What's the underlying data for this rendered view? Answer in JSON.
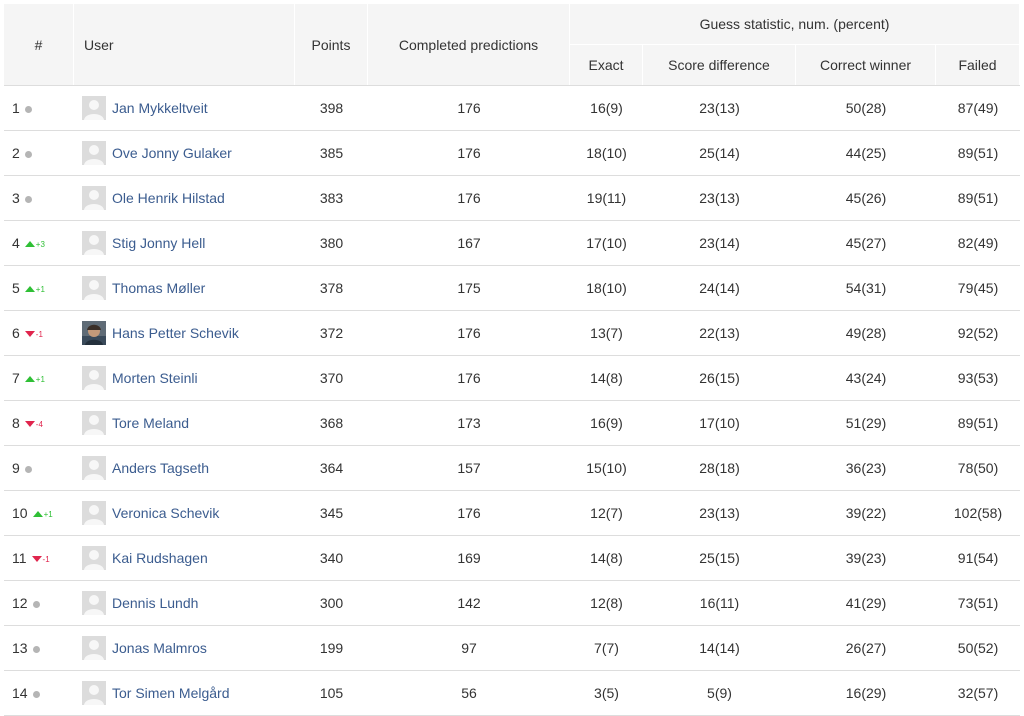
{
  "columns": {
    "rank": "#",
    "user": "User",
    "points": "Points",
    "completed": "Completed predictions",
    "guess_group": "Guess statistic, num. (percent)",
    "exact": "Exact",
    "score_diff": "Score difference",
    "correct_winner": "Correct winner",
    "failed": "Failed"
  },
  "colors": {
    "up": "#2fbf35",
    "down": "#e0254d",
    "same": "#b5b5b5",
    "link": "#3b5c8f"
  },
  "rows": [
    {
      "rank": "1",
      "trend": "same",
      "change": "",
      "name": "Jan Mykkeltveit",
      "avatar": "placeholder-avatar-icon",
      "points": "398",
      "completed": "176",
      "exact": "16(9)",
      "score_diff": "23(13)",
      "correct_winner": "50(28)",
      "failed": "87(49)"
    },
    {
      "rank": "2",
      "trend": "same",
      "change": "",
      "name": "Ove Jonny Gulaker",
      "avatar": "placeholder-avatar-icon",
      "points": "385",
      "completed": "176",
      "exact": "18(10)",
      "score_diff": "25(14)",
      "correct_winner": "44(25)",
      "failed": "89(51)"
    },
    {
      "rank": "3",
      "trend": "same",
      "change": "",
      "name": "Ole Henrik Hilstad",
      "avatar": "placeholder-avatar-icon",
      "points": "383",
      "completed": "176",
      "exact": "19(11)",
      "score_diff": "23(13)",
      "correct_winner": "45(26)",
      "failed": "89(51)"
    },
    {
      "rank": "4",
      "trend": "up",
      "change": "+3",
      "name": "Stig Jonny Hell",
      "avatar": "placeholder-avatar-icon",
      "points": "380",
      "completed": "167",
      "exact": "17(10)",
      "score_diff": "23(14)",
      "correct_winner": "45(27)",
      "failed": "82(49)"
    },
    {
      "rank": "5",
      "trend": "up",
      "change": "+1",
      "name": "Thomas Møller",
      "avatar": "placeholder-avatar-icon",
      "points": "378",
      "completed": "175",
      "exact": "18(10)",
      "score_diff": "24(14)",
      "correct_winner": "54(31)",
      "failed": "79(45)"
    },
    {
      "rank": "6",
      "trend": "down",
      "change": "-1",
      "name": "Hans Petter Schevik",
      "avatar": "photo-avatar-icon",
      "points": "372",
      "completed": "176",
      "exact": "13(7)",
      "score_diff": "22(13)",
      "correct_winner": "49(28)",
      "failed": "92(52)"
    },
    {
      "rank": "7",
      "trend": "up",
      "change": "+1",
      "name": "Morten Steinli",
      "avatar": "placeholder-avatar-icon",
      "points": "370",
      "completed": "176",
      "exact": "14(8)",
      "score_diff": "26(15)",
      "correct_winner": "43(24)",
      "failed": "93(53)"
    },
    {
      "rank": "8",
      "trend": "down",
      "change": "-4",
      "name": "Tore Meland",
      "avatar": "placeholder-avatar-icon",
      "points": "368",
      "completed": "173",
      "exact": "16(9)",
      "score_diff": "17(10)",
      "correct_winner": "51(29)",
      "failed": "89(51)"
    },
    {
      "rank": "9",
      "trend": "same",
      "change": "",
      "name": "Anders Tagseth",
      "avatar": "placeholder-avatar-icon",
      "points": "364",
      "completed": "157",
      "exact": "15(10)",
      "score_diff": "28(18)",
      "correct_winner": "36(23)",
      "failed": "78(50)"
    },
    {
      "rank": "10",
      "trend": "up",
      "change": "+1",
      "name": "Veronica Schevik",
      "avatar": "placeholder-avatar-icon",
      "points": "345",
      "completed": "176",
      "exact": "12(7)",
      "score_diff": "23(13)",
      "correct_winner": "39(22)",
      "failed": "102(58)"
    },
    {
      "rank": "11",
      "trend": "down",
      "change": "-1",
      "name": "Kai Rudshagen",
      "avatar": "placeholder-avatar-icon",
      "points": "340",
      "completed": "169",
      "exact": "14(8)",
      "score_diff": "25(15)",
      "correct_winner": "39(23)",
      "failed": "91(54)"
    },
    {
      "rank": "12",
      "trend": "same",
      "change": "",
      "name": "Dennis Lundh",
      "avatar": "placeholder-avatar-icon",
      "points": "300",
      "completed": "142",
      "exact": "12(8)",
      "score_diff": "16(11)",
      "correct_winner": "41(29)",
      "failed": "73(51)"
    },
    {
      "rank": "13",
      "trend": "same",
      "change": "",
      "name": "Jonas Malmros",
      "avatar": "placeholder-avatar-icon",
      "points": "199",
      "completed": "97",
      "exact": "7(7)",
      "score_diff": "14(14)",
      "correct_winner": "26(27)",
      "failed": "50(52)"
    },
    {
      "rank": "14",
      "trend": "same",
      "change": "",
      "name": "Tor Simen Melgård",
      "avatar": "placeholder-avatar-icon",
      "points": "105",
      "completed": "56",
      "exact": "3(5)",
      "score_diff": "5(9)",
      "correct_winner": "16(29)",
      "failed": "32(57)"
    }
  ]
}
